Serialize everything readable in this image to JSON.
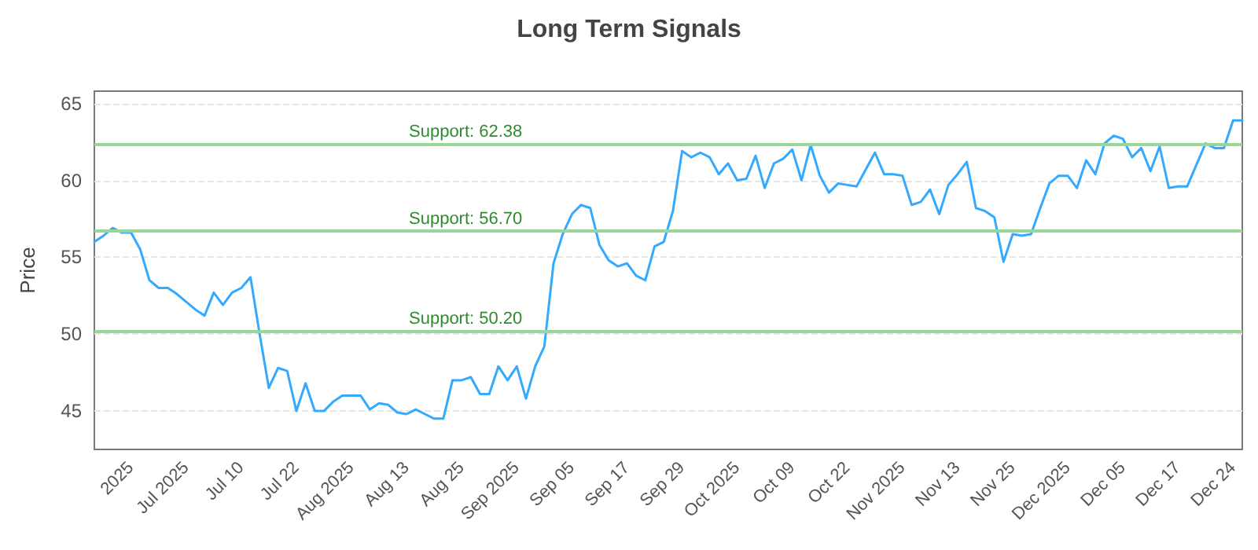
{
  "chart_data": {
    "type": "line",
    "title": "Long Term Signals",
    "ylabel": "Price",
    "categories": [
      null,
      null,
      null,
      null,
      "2025",
      null,
      null,
      null,
      null,
      null,
      "Jul 2025",
      null,
      null,
      null,
      null,
      null,
      "Jul 10",
      null,
      null,
      null,
      null,
      null,
      "Jul 22",
      null,
      null,
      null,
      null,
      null,
      "Aug 2025",
      null,
      null,
      null,
      null,
      null,
      "Aug 13",
      null,
      null,
      null,
      null,
      null,
      "Aug 25",
      null,
      null,
      null,
      null,
      null,
      "Sep 2025",
      null,
      null,
      null,
      null,
      null,
      "Sep 05",
      null,
      null,
      null,
      null,
      null,
      "Sep 17",
      null,
      null,
      null,
      null,
      null,
      "Sep 29",
      null,
      null,
      null,
      null,
      null,
      "Oct 2025",
      null,
      null,
      null,
      null,
      null,
      "Oct 09",
      null,
      null,
      null,
      null,
      null,
      "Oct 22",
      null,
      null,
      null,
      null,
      null,
      "Nov 2025",
      null,
      null,
      null,
      null,
      null,
      "Nov 13",
      null,
      null,
      null,
      null,
      null,
      "Nov 25",
      null,
      null,
      null,
      null,
      null,
      "Dec 2025",
      null,
      null,
      null,
      null,
      null,
      "Dec 05",
      null,
      null,
      null,
      null,
      null,
      "Dec 17",
      null,
      null,
      null,
      null,
      null,
      "Dec 24",
      null
    ],
    "series": [
      {
        "color": "#33aaff",
        "values": [
          56.0,
          56.4,
          56.9,
          56.6,
          56.6,
          55.5,
          53.5,
          53.0,
          53.0,
          52.6,
          52.1,
          51.6,
          51.2,
          52.7,
          51.9,
          52.7,
          53.0,
          53.7,
          50.0,
          46.5,
          47.8,
          47.6,
          45.0,
          46.8,
          45.0,
          45.0,
          45.6,
          46.0,
          46.0,
          46.0,
          45.1,
          45.5,
          45.4,
          44.9,
          44.8,
          45.1,
          44.8,
          44.5,
          44.5,
          47.0,
          47.0,
          47.2,
          46.1,
          46.1,
          47.9,
          47.0,
          47.9,
          45.8,
          47.9,
          49.2,
          54.6,
          56.5,
          57.8,
          58.4,
          58.2,
          55.8,
          54.8,
          54.4,
          54.6,
          53.8,
          53.5,
          55.7,
          56.0,
          58.0,
          61.9,
          61.5,
          61.8,
          61.5,
          60.4,
          61.1,
          60.0,
          60.1,
          61.6,
          59.5,
          61.1,
          61.4,
          62.0,
          60.0,
          62.3,
          60.3,
          59.2,
          59.8,
          59.7,
          59.6,
          60.7,
          61.8,
          60.4,
          60.4,
          60.3,
          58.4,
          58.6,
          59.4,
          57.8,
          59.7,
          60.4,
          61.2,
          58.2,
          58.0,
          57.6,
          54.7,
          56.5,
          56.4,
          56.5,
          58.2,
          59.8,
          60.3,
          60.3,
          59.5,
          61.3,
          60.4,
          62.4,
          62.9,
          62.7,
          61.5,
          62.1,
          60.6,
          62.2,
          59.5,
          59.6,
          59.6,
          61.0,
          62.4,
          62.1,
          62.1,
          63.9,
          63.9
        ]
      }
    ],
    "ylim": [
      42.5,
      65.8
    ],
    "yticks": [
      45,
      50,
      55,
      60,
      65
    ],
    "grid": "y",
    "marker": "none",
    "line_style": "solid",
    "ref_lines": [
      {
        "axis": "y",
        "value": 62.38,
        "label": "Support: 62.38",
        "color": "#99d699"
      },
      {
        "axis": "y",
        "value": 56.7,
        "label": "Support: 56.70",
        "color": "#99d699"
      },
      {
        "axis": "y",
        "value": 50.2,
        "label": "Support: 50.20",
        "color": "#99d699"
      }
    ]
  }
}
